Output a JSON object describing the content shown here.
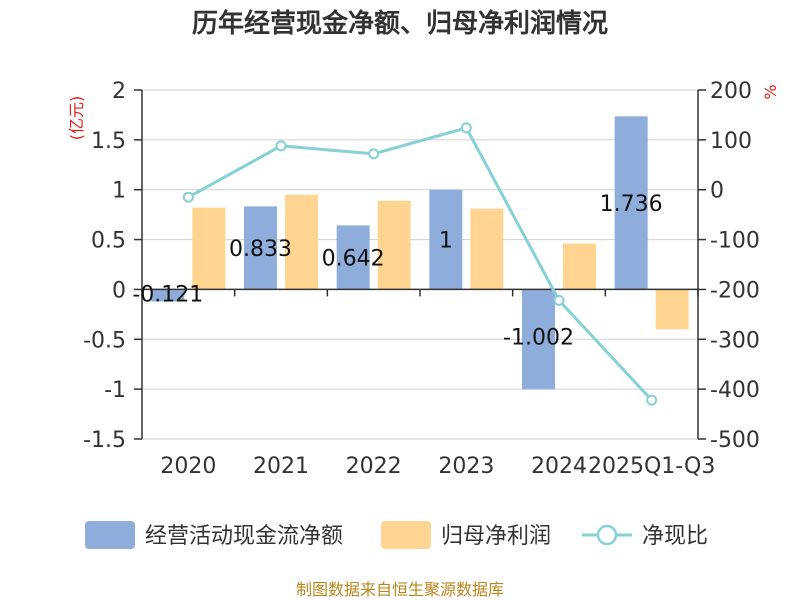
{
  "colors": {
    "cash": "#8eaddb",
    "profit": "#ffd591",
    "ratio": "#86d0d6",
    "unit": "#e0201b",
    "source": "#b8861b",
    "text": "#333333"
  },
  "chart_data": {
    "type": "bar",
    "title": "历年经营现金净额、归母净利润情况",
    "categories": [
      "2020",
      "2021",
      "2022",
      "2023",
      "2024",
      "2025Q1-Q3"
    ],
    "left_axis": {
      "unit": "(亿元)",
      "ticks": [
        "2",
        "1.5",
        "1",
        "0.5",
        "0",
        "-0.5",
        "-1",
        "-1.5"
      ],
      "range": [
        -1.5,
        2
      ]
    },
    "right_axis": {
      "unit": "%",
      "ticks": [
        "200",
        "100",
        "0",
        "-100",
        "-200",
        "-300",
        "-400",
        "-500"
      ],
      "range": [
        -500,
        200
      ]
    },
    "series": [
      {
        "name": "经营活动现金流净额",
        "kind": "bar",
        "axis": "left",
        "values": [
          -0.121,
          0.833,
          0.642,
          1,
          -1.002,
          1.736
        ],
        "labels": [
          "-0.121",
          "0.833",
          "0.642",
          "1",
          "-1.002",
          "1.736"
        ]
      },
      {
        "name": "归母净利润",
        "kind": "bar",
        "axis": "left",
        "values": [
          0.82,
          0.95,
          0.89,
          0.81,
          0.46,
          -0.4
        ]
      },
      {
        "name": "净现比",
        "kind": "line",
        "axis": "right",
        "values": [
          -15,
          88,
          72,
          124,
          -222,
          -422
        ]
      }
    ],
    "legend": {
      "position": "bottom"
    }
  },
  "source": "制图数据来自恒生聚源数据库"
}
